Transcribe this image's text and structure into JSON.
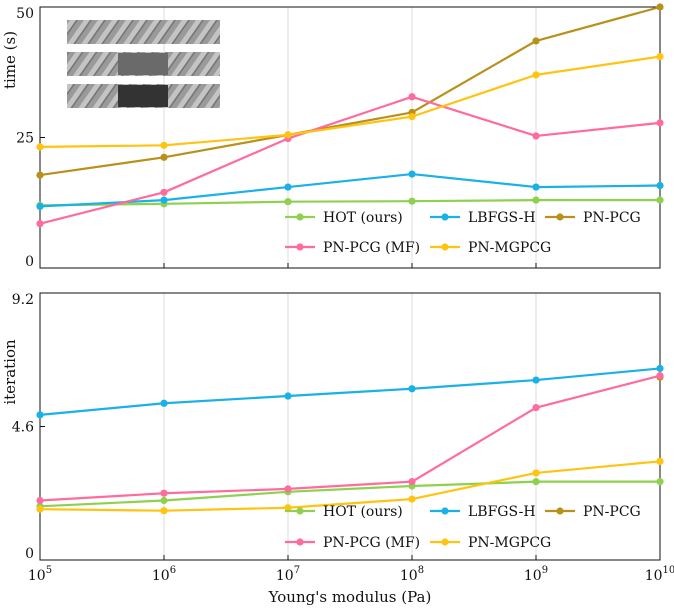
{
  "chart_data": [
    {
      "type": "line",
      "ylabel": "time (s)",
      "xlabel": "",
      "x_scale": "log",
      "x": [
        100000,
        1000000,
        10000000,
        100000000,
        1000000000,
        10000000000
      ],
      "ylim": [
        0,
        50
      ],
      "yticks": [
        "0",
        "25",
        "50"
      ],
      "ytick_values": [
        0,
        25,
        50
      ],
      "legend_position": "lower-right",
      "inset_image": "twisted-rod-renders",
      "series": [
        {
          "name": "HOT (ours)",
          "color": "#8fd14f",
          "values": [
            12.0,
            12.3,
            12.7,
            12.8,
            13.0,
            13.0
          ]
        },
        {
          "name": "LBFGS-H",
          "color": "#1ab0e8",
          "values": [
            11.8,
            13.0,
            15.5,
            18.0,
            15.5,
            15.8
          ]
        },
        {
          "name": "PN-PCG",
          "color": "#b8901a",
          "values": [
            17.8,
            21.2,
            25.5,
            29.8,
            43.5,
            50.0
          ]
        },
        {
          "name": "PN-PCG (MF)",
          "color": "#ff6b9d",
          "values": [
            8.5,
            14.5,
            24.8,
            32.8,
            25.3,
            27.8
          ]
        },
        {
          "name": "PN-MGPCG",
          "color": "#ffc310",
          "values": [
            23.2,
            23.5,
            25.5,
            29.0,
            37.0,
            40.5
          ]
        }
      ]
    },
    {
      "type": "line",
      "ylabel": "iteration",
      "xlabel": "Young's modulus (Pa)",
      "x_scale": "log",
      "x": [
        100000,
        1000000,
        10000000,
        100000000,
        1000000000,
        10000000000
      ],
      "xtick_base": "10",
      "xtick_exponents": [
        "5",
        "6",
        "7",
        "8",
        "9",
        "10"
      ],
      "ylim": [
        0,
        9.2
      ],
      "yticks": [
        "0",
        "4.6",
        "9.2"
      ],
      "ytick_values": [
        0,
        4.6,
        9.2
      ],
      "legend_position": "lower-right",
      "series": [
        {
          "name": "HOT (ours)",
          "color": "#8fd14f",
          "values": [
            1.85,
            2.05,
            2.35,
            2.55,
            2.7,
            2.7
          ]
        },
        {
          "name": "LBFGS-H",
          "color": "#1ab0e8",
          "values": [
            5.0,
            5.4,
            5.65,
            5.9,
            6.2,
            6.6
          ]
        },
        {
          "name": "PN-PCG",
          "color": "#b8901a",
          "values": [
            null,
            null,
            null,
            null,
            null,
            6.3
          ]
        },
        {
          "name": "PN-PCG (MF)",
          "color": "#ff6b9d",
          "values": [
            2.05,
            2.3,
            2.45,
            2.7,
            5.25,
            6.35
          ]
        },
        {
          "name": "PN-MGPCG",
          "color": "#ffc310",
          "values": [
            1.75,
            1.7,
            1.8,
            2.1,
            3.0,
            3.4
          ]
        }
      ]
    }
  ]
}
